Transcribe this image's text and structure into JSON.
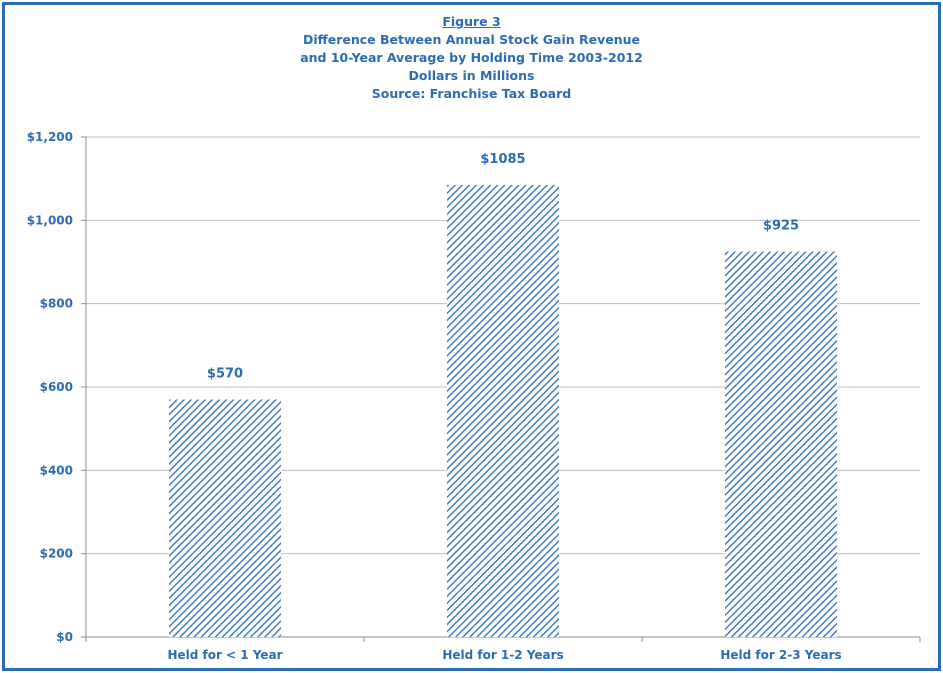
{
  "figure": {
    "label": "Figure 3",
    "title_line1": "Difference Between Annual Stock Gain Revenue",
    "title_line2": "and 10-Year Average by Holding Time 2003-2012",
    "units": "Dollars in Millions",
    "source": "Source: Franchise Tax Board"
  },
  "colors": {
    "accent": "#2a6db5",
    "grid": "#bfbfbf",
    "axis": "#8c8c8c"
  },
  "chart_data": {
    "type": "bar",
    "categories": [
      "Held for < 1 Year",
      "Held for 1-2 Years",
      "Held for 2-3 Years"
    ],
    "values": [
      570,
      1085,
      925
    ],
    "data_labels": [
      "$570",
      "$1085",
      "$925"
    ],
    "ylim": [
      0,
      1200
    ],
    "yticks": [
      0,
      200,
      400,
      600,
      800,
      1000,
      1200
    ],
    "ytick_labels": [
      "$0",
      "$200",
      "$400",
      "$600",
      "$800",
      "$1,000",
      "$1,200"
    ],
    "grid": true,
    "fill": "diagonal-hatch"
  }
}
